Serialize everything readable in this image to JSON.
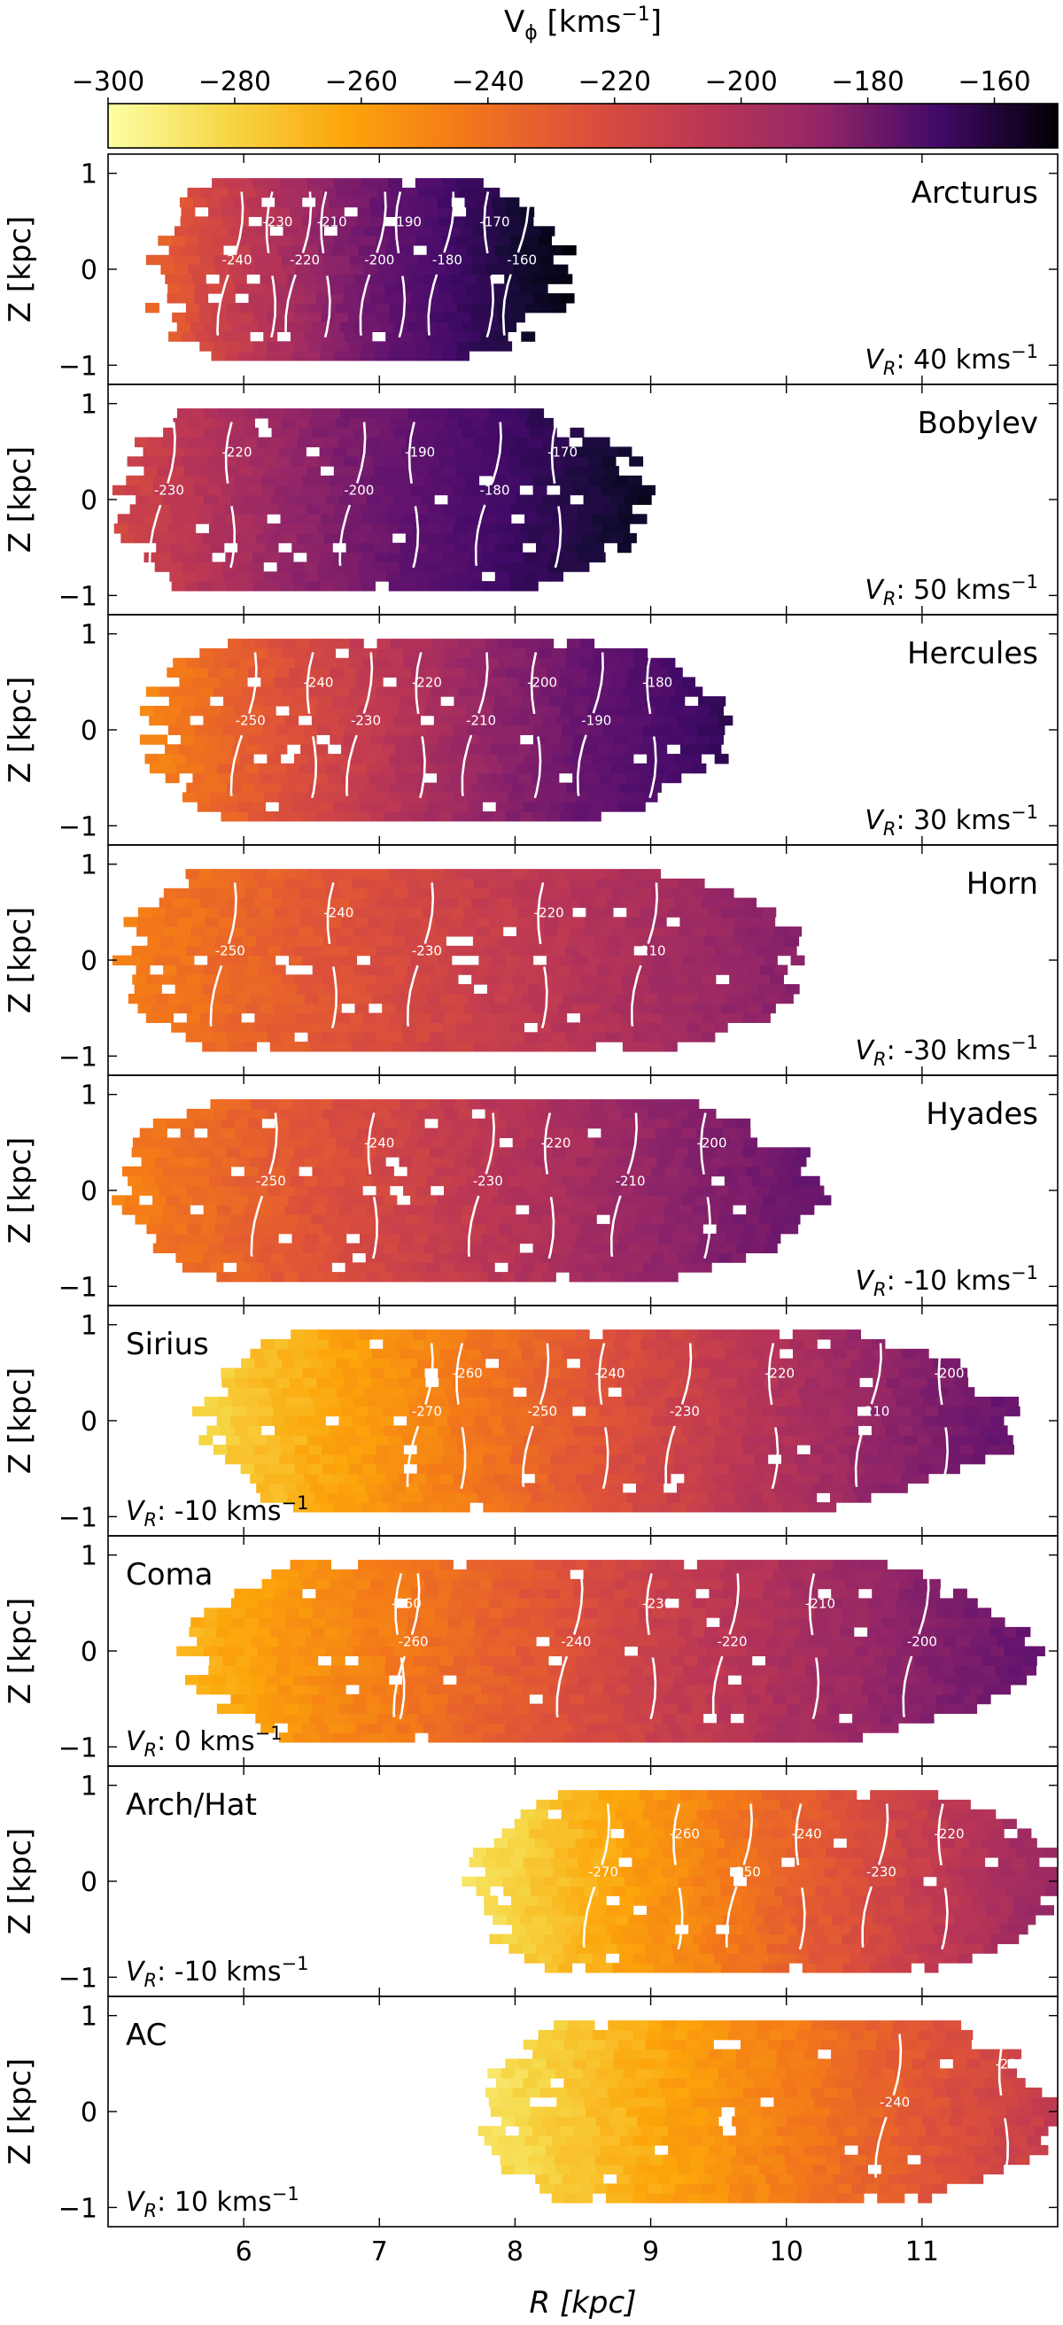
{
  "chart_data": {
    "type": "heatmap",
    "colorbar": {
      "label": "V",
      "label_sub": "ϕ",
      "label_unit": " [kms",
      "label_unit_sup": "−1",
      "label_close": "]",
      "range": [
        -300,
        -150
      ],
      "ticks": [
        -300,
        -280,
        -260,
        -240,
        -220,
        -200,
        -180,
        -160
      ],
      "tick_labels": [
        "−300",
        "−280",
        "−260",
        "−240",
        "−220",
        "−200",
        "−180",
        "−160"
      ],
      "colormap": "inferno_r",
      "placement": "top"
    },
    "xaxis": {
      "label": "R [kpc]",
      "range": [
        5,
        12
      ],
      "ticks": [
        6,
        7,
        8,
        9,
        10,
        11
      ],
      "tick_labels": [
        "6",
        "7",
        "8",
        "9",
        "10",
        "11"
      ]
    },
    "yaxis": {
      "label": "Z [kpc]",
      "range": [
        -1.2,
        1.2
      ],
      "ticks": [
        -1,
        0,
        1
      ],
      "tick_labels": [
        "−1",
        "0",
        "1"
      ]
    },
    "vr_label": {
      "prefix": "V",
      "sub": "R",
      "sep": ": ",
      "unit": " kms",
      "unit_sup": "−1"
    },
    "panels": [
      {
        "name": "Arcturus",
        "vr": "40",
        "name_pos": "top-right",
        "vr_pos": "bottom-right",
        "r_min": 5.2,
        "r_max": 8.3,
        "vphi_at_rmin": -250,
        "vphi_at_rmax": -155,
        "z_extent": 0.95,
        "contours": [
          {
            "value": -240,
            "label": "-240",
            "r": 5.9
          },
          {
            "value": -230,
            "label": "-230",
            "r": 6.2
          },
          {
            "value": -220,
            "label": "-220",
            "r": 6.4
          },
          {
            "value": -210,
            "label": "-210",
            "r": 6.6
          },
          {
            "value": -200,
            "label": "-200",
            "r": 6.95
          },
          {
            "value": -190,
            "label": "-190",
            "r": 7.15
          },
          {
            "value": -180,
            "label": "-180",
            "r": 7.45
          },
          {
            "value": -170,
            "label": "-170",
            "r": 7.8
          },
          {
            "value": -160,
            "label": "-160",
            "r": 8.0
          }
        ]
      },
      {
        "name": "Bobylev",
        "vr": "50",
        "name_pos": "top-right",
        "vr_pos": "bottom-right",
        "r_min": 5.0,
        "r_max": 8.9,
        "vphi_at_rmin": -235,
        "vphi_at_rmax": -160,
        "z_extent": 0.95,
        "contours": [
          {
            "value": -230,
            "label": "-230",
            "r": 5.4
          },
          {
            "value": -220,
            "label": "-220",
            "r": 5.9
          },
          {
            "value": -200,
            "label": "-200",
            "r": 6.8
          },
          {
            "value": -190,
            "label": "-190",
            "r": 7.25
          },
          {
            "value": -180,
            "label": "-180",
            "r": 7.8
          },
          {
            "value": -170,
            "label": "-170",
            "r": 8.3
          }
        ]
      },
      {
        "name": "Hercules",
        "vr": "30",
        "name_pos": "top-right",
        "vr_pos": "bottom-right",
        "r_min": 5.2,
        "r_max": 9.5,
        "vphi_at_rmin": -260,
        "vphi_at_rmax": -175,
        "z_extent": 0.95,
        "contours": [
          {
            "value": -250,
            "label": "-250",
            "r": 6.0
          },
          {
            "value": -240,
            "label": "-240",
            "r": 6.5
          },
          {
            "value": -230,
            "label": "-230",
            "r": 6.85
          },
          {
            "value": -220,
            "label": "-220",
            "r": 7.3
          },
          {
            "value": -210,
            "label": "-210",
            "r": 7.7
          },
          {
            "value": -200,
            "label": "-200",
            "r": 8.15
          },
          {
            "value": -190,
            "label": "-190",
            "r": 8.55
          },
          {
            "value": -180,
            "label": "-180",
            "r": 9.0
          }
        ]
      },
      {
        "name": "Horn",
        "vr": "-30",
        "name_pos": "top-right",
        "vr_pos": "bottom-right",
        "r_min": 5.0,
        "r_max": 10.1,
        "vphi_at_rmin": -258,
        "vphi_at_rmax": -205,
        "z_extent": 0.95,
        "contours": [
          {
            "value": -250,
            "label": "-250",
            "r": 5.85
          },
          {
            "value": -240,
            "label": "-240",
            "r": 6.65
          },
          {
            "value": -230,
            "label": "-230",
            "r": 7.3
          },
          {
            "value": -220,
            "label": "-220",
            "r": 8.2
          },
          {
            "value": -210,
            "label": "-210",
            "r": 8.95
          }
        ]
      },
      {
        "name": "Hyades",
        "vr": "-10",
        "name_pos": "top-right",
        "vr_pos": "bottom-right",
        "r_min": 5.0,
        "r_max": 10.2,
        "vphi_at_rmin": -258,
        "vphi_at_rmax": -195,
        "z_extent": 0.95,
        "contours": [
          {
            "value": -250,
            "label": "-250",
            "r": 6.15
          },
          {
            "value": -240,
            "label": "-240",
            "r": 6.95
          },
          {
            "value": -230,
            "label": "-230",
            "r": 7.75
          },
          {
            "value": -220,
            "label": "-220",
            "r": 8.25
          },
          {
            "value": -210,
            "label": "-210",
            "r": 8.8
          },
          {
            "value": -200,
            "label": "-200",
            "r": 9.4
          }
        ]
      },
      {
        "name": "Sirius",
        "vr": "-10",
        "name_pos": "top-left",
        "vr_pos": "bottom-left",
        "r_min": 5.6,
        "r_max": 11.6,
        "vphi_at_rmin": -285,
        "vphi_at_rmax": -195,
        "z_extent": 0.95,
        "contours": [
          {
            "value": -270,
            "label": "-270",
            "r": 7.3
          },
          {
            "value": -260,
            "label": "-260",
            "r": 7.6
          },
          {
            "value": -250,
            "label": "-250",
            "r": 8.15
          },
          {
            "value": -240,
            "label": "-240",
            "r": 8.65
          },
          {
            "value": -230,
            "label": "-230",
            "r": 9.2
          },
          {
            "value": -220,
            "label": "-220",
            "r": 9.9
          },
          {
            "value": -210,
            "label": "-210",
            "r": 10.6
          },
          {
            "value": -200,
            "label": "-200",
            "r": 11.15
          }
        ]
      },
      {
        "name": "Coma",
        "vr": "0",
        "name_pos": "top-left",
        "vr_pos": "bottom-left",
        "r_min": 5.5,
        "r_max": 11.8,
        "vphi_at_rmin": -275,
        "vphi_at_rmax": -195,
        "z_extent": 0.95,
        "contours": [
          {
            "value": -260,
            "label": "-260",
            "r": 7.2
          },
          {
            "value": -250,
            "label": "-250",
            "r": 7.15
          },
          {
            "value": -240,
            "label": "-240",
            "r": 8.4
          },
          {
            "value": -230,
            "label": "-230",
            "r": 9.0
          },
          {
            "value": -220,
            "label": "-220",
            "r": 9.55
          },
          {
            "value": -210,
            "label": "-210",
            "r": 10.2
          },
          {
            "value": -200,
            "label": "-200",
            "r": 10.95
          }
        ]
      },
      {
        "name": "Arch/Hat",
        "vr": "-10",
        "name_pos": "top-left",
        "vr_pos": "bottom-left",
        "r_min": 7.6,
        "r_max": 12.0,
        "vphi_at_rmin": -290,
        "vphi_at_rmax": -210,
        "z_extent": 0.95,
        "contours": [
          {
            "value": -270,
            "label": "-270",
            "r": 8.6
          },
          {
            "value": -260,
            "label": "-260",
            "r": 9.2
          },
          {
            "value": -250,
            "label": "-250",
            "r": 9.65
          },
          {
            "value": -240,
            "label": "-240",
            "r": 10.1
          },
          {
            "value": -230,
            "label": "-230",
            "r": 10.65
          },
          {
            "value": -220,
            "label": "-220",
            "r": 11.15
          }
        ]
      },
      {
        "name": "AC",
        "vr": "10",
        "name_pos": "top-left",
        "vr_pos": "bottom-left",
        "r_min": 7.7,
        "r_max": 11.9,
        "vphi_at_rmin": -290,
        "vphi_at_rmax": -228,
        "z_extent": 0.95,
        "contours": [
          {
            "value": -240,
            "label": "-240",
            "r": 10.75
          },
          {
            "value": -230,
            "label": "-230",
            "r": 11.6
          }
        ]
      }
    ]
  }
}
